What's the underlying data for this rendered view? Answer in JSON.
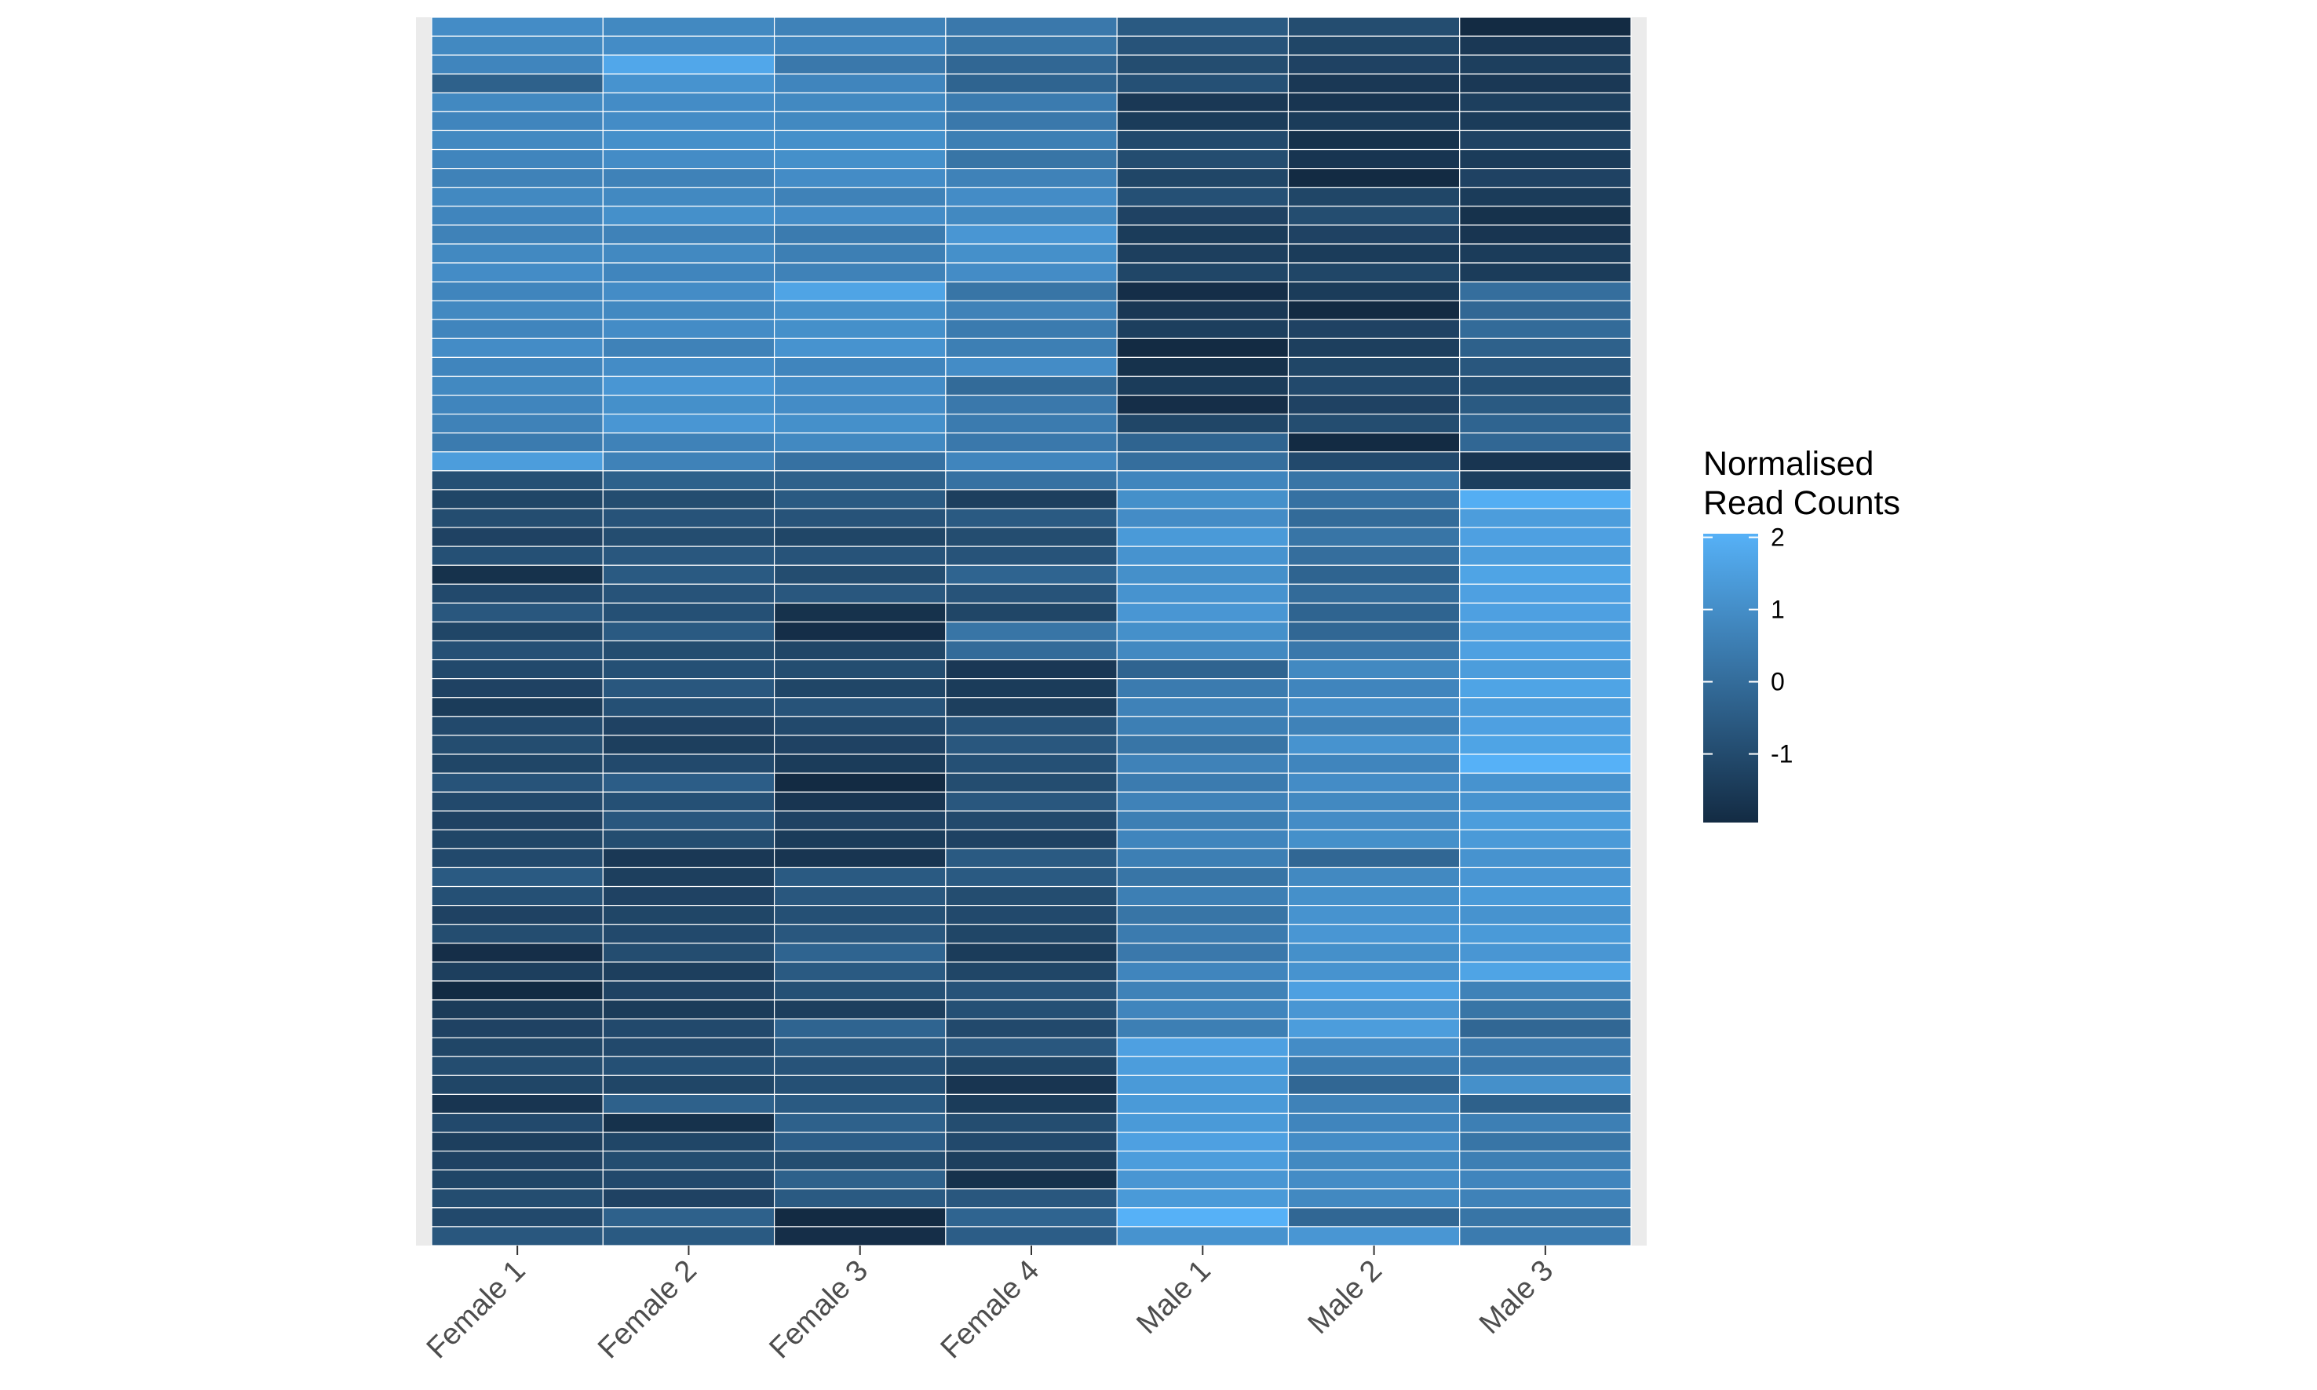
{
  "chart_data": {
    "type": "heatmap",
    "title": "",
    "xlabel": "",
    "ylabel": "",
    "columns": [
      "Female 1",
      "Female 2",
      "Female 3",
      "Female 4",
      "Male 1",
      "Male 2",
      "Male 3"
    ],
    "legend": {
      "title_lines": [
        "Normalised",
        "Read Counts"
      ],
      "ticks": [
        2,
        1,
        0,
        -1
      ],
      "tick_labels": [
        "2",
        "1",
        "0",
        "-1"
      ],
      "range": [
        -2,
        2
      ],
      "placement": "right"
    },
    "colors": {
      "low": "#132B43",
      "high": "#56B1F7",
      "panel": "#EBEBEB",
      "cell_border": "#FFFFFF"
    },
    "values": [
      [
        0.9,
        0.8,
        0.6,
        0.3,
        -0.6,
        -1.0,
        -2.0
      ],
      [
        0.8,
        0.9,
        0.7,
        0.2,
        -0.8,
        -1.2,
        -1.6
      ],
      [
        0.7,
        1.7,
        0.3,
        -0.2,
        -1.0,
        -1.3,
        -1.4
      ],
      [
        -0.4,
        1.1,
        0.7,
        -0.3,
        -0.9,
        -1.6,
        -1.6
      ],
      [
        0.8,
        0.9,
        0.8,
        0.4,
        -1.6,
        -1.7,
        -1.4
      ],
      [
        0.7,
        0.9,
        0.8,
        0.3,
        -1.5,
        -1.5,
        -1.5
      ],
      [
        0.8,
        1.0,
        1.0,
        0.5,
        -1.1,
        -1.8,
        -1.3
      ],
      [
        0.7,
        0.9,
        1.0,
        0.2,
        -1.0,
        -1.7,
        -1.5
      ],
      [
        0.6,
        0.6,
        0.9,
        0.6,
        -1.2,
        -2.0,
        -1.3
      ],
      [
        0.8,
        0.8,
        0.6,
        0.9,
        -0.9,
        -1.2,
        -1.5
      ],
      [
        0.7,
        1.0,
        0.9,
        0.8,
        -1.3,
        -1.0,
        -1.8
      ],
      [
        0.6,
        0.6,
        0.4,
        1.2,
        -1.5,
        -1.3,
        -1.7
      ],
      [
        0.8,
        0.8,
        0.5,
        1.0,
        -1.4,
        -1.5,
        -1.5
      ],
      [
        0.9,
        0.7,
        0.6,
        0.9,
        -1.2,
        -1.2,
        -1.5
      ],
      [
        0.7,
        0.9,
        1.6,
        0.2,
        -1.9,
        -1.5,
        0.0
      ],
      [
        0.8,
        0.8,
        1.0,
        0.6,
        -1.6,
        -2.1,
        -0.2
      ],
      [
        0.7,
        0.9,
        1.0,
        0.4,
        -1.4,
        -1.3,
        -0.1
      ],
      [
        0.9,
        0.6,
        1.1,
        0.5,
        -2.0,
        -1.4,
        -0.4
      ],
      [
        0.7,
        0.9,
        0.7,
        0.9,
        -1.8,
        -1.2,
        -0.7
      ],
      [
        0.8,
        1.2,
        0.9,
        -0.1,
        -1.5,
        -1.1,
        -0.9
      ],
      [
        0.7,
        1.0,
        0.9,
        0.3,
        -1.9,
        -1.3,
        -0.6
      ],
      [
        0.6,
        1.2,
        1.0,
        0.4,
        -1.2,
        -1.0,
        -0.3
      ],
      [
        0.4,
        0.6,
        0.8,
        0.3,
        -0.3,
        -2.1,
        -0.2
      ],
      [
        1.4,
        0.6,
        0.1,
        0.7,
        0.0,
        -1.1,
        -1.7
      ],
      [
        -0.9,
        -0.4,
        -0.4,
        0.1,
        0.7,
        0.2,
        -1.4
      ],
      [
        -1.2,
        -1.0,
        -0.6,
        -1.4,
        1.0,
        0.1,
        1.9
      ],
      [
        -1.0,
        -0.8,
        -0.8,
        -0.6,
        0.9,
        -0.1,
        1.4
      ],
      [
        -1.3,
        -1.0,
        -1.2,
        -1.0,
        1.3,
        0.2,
        1.5
      ],
      [
        -0.9,
        -0.7,
        -0.8,
        -0.8,
        1.1,
        0.0,
        1.4
      ],
      [
        -1.8,
        -0.6,
        -1.0,
        -0.3,
        1.0,
        -0.3,
        1.6
      ],
      [
        -1.1,
        -0.8,
        -0.7,
        -0.8,
        1.1,
        -0.1,
        1.5
      ],
      [
        -0.7,
        -0.9,
        -1.8,
        -1.2,
        1.2,
        -0.3,
        1.5
      ],
      [
        -1.2,
        -0.6,
        -1.9,
        0.2,
        1.0,
        -0.2,
        1.4
      ],
      [
        -0.9,
        -1.0,
        -1.2,
        -0.1,
        0.8,
        0.3,
        1.5
      ],
      [
        -1.1,
        -0.9,
        -1.0,
        -1.6,
        -0.3,
        0.8,
        1.4
      ],
      [
        -1.3,
        -0.7,
        -1.2,
        -1.5,
        0.4,
        0.7,
        1.6
      ],
      [
        -1.5,
        -0.9,
        -0.8,
        -1.4,
        0.6,
        0.9,
        1.4
      ],
      [
        -1.1,
        -1.3,
        -1.1,
        -0.8,
        0.5,
        0.6,
        1.5
      ],
      [
        -1.0,
        -1.4,
        -1.3,
        -0.7,
        0.2,
        1.1,
        1.6
      ],
      [
        -1.2,
        -1.1,
        -1.5,
        -0.9,
        0.6,
        0.7,
        2.0
      ],
      [
        -0.8,
        -0.5,
        -2.0,
        -1.0,
        0.4,
        0.9,
        1.1
      ],
      [
        -1.1,
        -0.9,
        -1.7,
        -0.7,
        0.6,
        0.8,
        1.1
      ],
      [
        -1.3,
        -0.7,
        -1.3,
        -1.1,
        0.5,
        0.9,
        1.4
      ],
      [
        -1.2,
        -1.0,
        -1.5,
        -1.3,
        0.7,
        1.0,
        1.3
      ],
      [
        -1.1,
        -1.6,
        -1.7,
        -0.6,
        0.5,
        -0.2,
        1.1
      ],
      [
        -0.6,
        -1.4,
        -0.6,
        -0.6,
        0.2,
        0.8,
        1.2
      ],
      [
        -0.9,
        -1.3,
        -0.7,
        -1.0,
        0.5,
        1.0,
        1.3
      ],
      [
        -1.3,
        -1.2,
        -0.9,
        -1.1,
        0.2,
        1.1,
        1.1
      ],
      [
        -1.0,
        -1.1,
        -0.7,
        -1.2,
        0.4,
        1.2,
        1.3
      ],
      [
        -1.9,
        -1.0,
        -0.3,
        -1.5,
        0.3,
        1.0,
        1.2
      ],
      [
        -1.4,
        -1.4,
        -0.6,
        -1.2,
        0.7,
        1.1,
        1.6
      ],
      [
        -2.0,
        -1.3,
        -0.9,
        -0.8,
        0.6,
        1.5,
        0.6
      ],
      [
        -1.5,
        -1.5,
        -1.4,
        -0.9,
        0.7,
        1.2,
        0.2
      ],
      [
        -1.3,
        -1.1,
        -0.3,
        -1.1,
        0.5,
        1.4,
        -0.2
      ],
      [
        -1.2,
        -1.1,
        -0.6,
        -0.7,
        1.5,
        0.9,
        0.3
      ],
      [
        -1.0,
        -0.9,
        -0.8,
        -1.2,
        1.4,
        0.4,
        0.3
      ],
      [
        -1.2,
        -1.2,
        -0.9,
        -1.7,
        1.3,
        -0.2,
        1.0
      ],
      [
        -1.7,
        -0.4,
        -0.6,
        -1.5,
        1.3,
        0.6,
        -0.4
      ],
      [
        -1.1,
        -1.8,
        -0.4,
        -1.0,
        1.3,
        0.7,
        0.5
      ],
      [
        -1.4,
        -1.2,
        -0.5,
        -1.1,
        1.5,
        0.9,
        0.2
      ],
      [
        -1.3,
        -1.0,
        -1.0,
        -1.4,
        1.4,
        0.8,
        0.5
      ],
      [
        -1.2,
        -1.1,
        -0.4,
        -1.8,
        1.2,
        0.9,
        0.7
      ],
      [
        -1.0,
        -1.3,
        -0.6,
        -0.7,
        1.3,
        0.8,
        0.6
      ],
      [
        -1.1,
        -0.4,
        -2.2,
        -0.3,
        2.2,
        -0.2,
        0.2
      ],
      [
        -0.7,
        -0.6,
        -1.9,
        -0.5,
        1.1,
        1.2,
        0.4
      ]
    ]
  }
}
